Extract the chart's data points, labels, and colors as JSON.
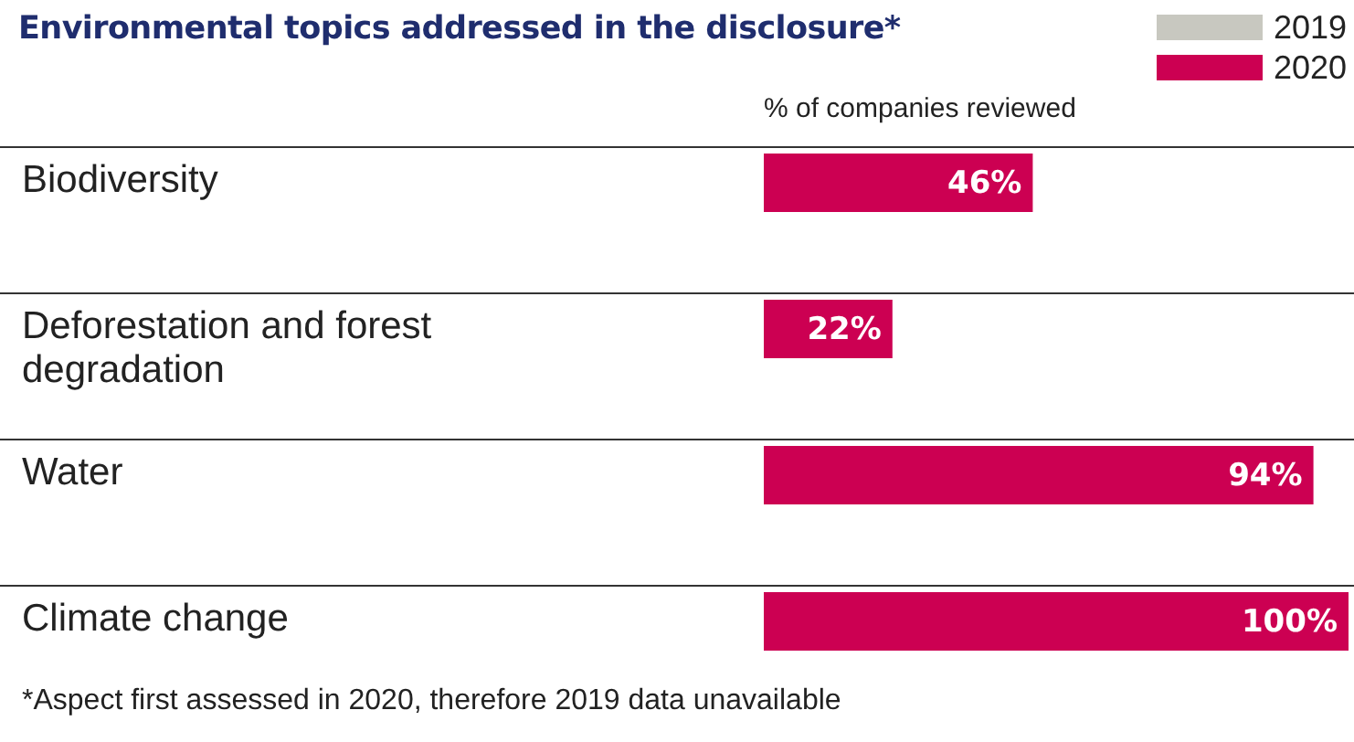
{
  "chart_data": {
    "type": "bar",
    "orientation": "horizontal",
    "title": "Environmental topics addressed in the disclosure*",
    "xlabel": "% of companies reviewed",
    "categories": [
      "Biodiversity",
      "Deforestation and forest degradation",
      "Water",
      "Climate change"
    ],
    "series": [
      {
        "name": "2020",
        "color": "#cc0052",
        "values": [
          46,
          22,
          94,
          100
        ],
        "value_labels": [
          "46%",
          "22%",
          "94%",
          "100%"
        ]
      },
      {
        "name": "2019",
        "color": "#c8c8c0",
        "values": [
          null,
          null,
          null,
          null
        ]
      }
    ],
    "xlim": [
      0,
      100
    ],
    "tick_labels": "y",
    "grid": "y",
    "legend": "top right",
    "annotations": [
      "*Aspect first assessed in 2020, therefore 2019 data unavailable"
    ]
  }
}
